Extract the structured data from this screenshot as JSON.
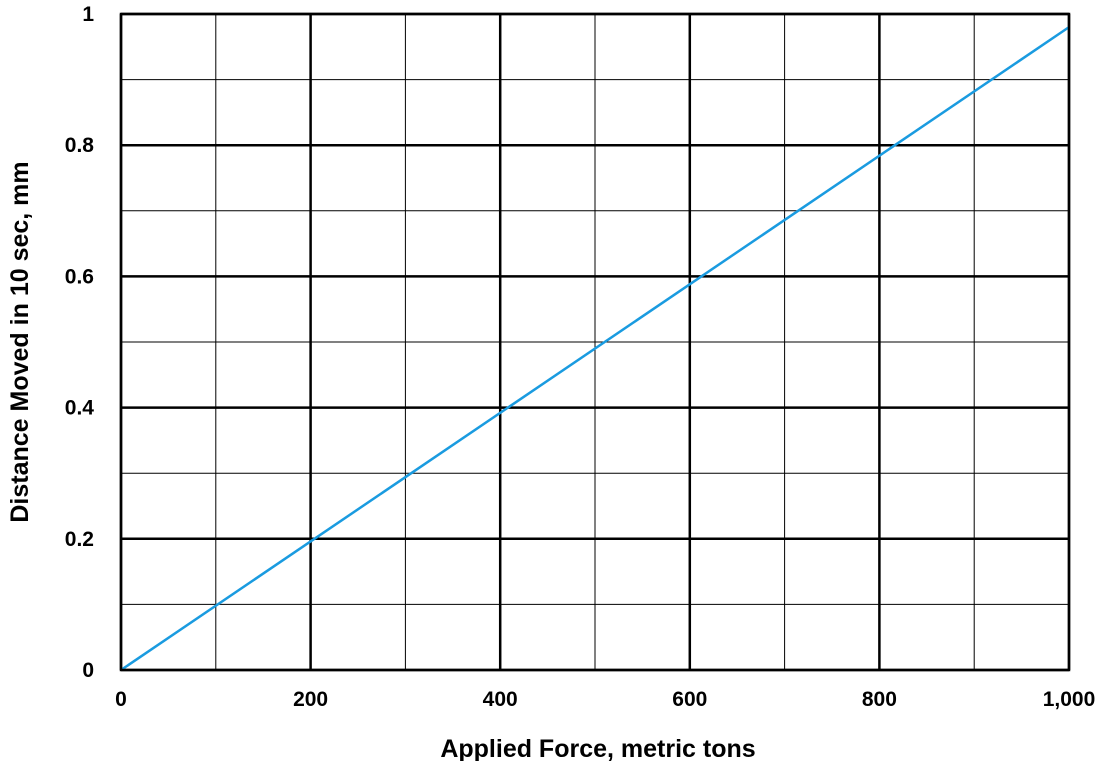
{
  "chart_data": {
    "type": "line",
    "title": "",
    "xlabel": "Applied Force, metric tons",
    "ylabel": "Distance Moved in 10 sec, mm",
    "xlim": [
      0,
      1000
    ],
    "ylim": [
      0,
      1
    ],
    "x_ticks": [
      0,
      200,
      400,
      600,
      800,
      1000
    ],
    "x_tick_labels": [
      "0",
      "200",
      "400",
      "600",
      "800",
      "1,000"
    ],
    "y_ticks": [
      0,
      0.2,
      0.4,
      0.6,
      0.8,
      1
    ],
    "y_tick_labels": [
      "0",
      "0.2",
      "0.4",
      "0.6",
      "0.8",
      "1"
    ],
    "x_minor_grid": [
      100,
      300,
      500,
      700,
      900
    ],
    "y_minor_grid": [
      0.1,
      0.3,
      0.5,
      0.7,
      0.9
    ],
    "grid": true,
    "legend": "none",
    "series": [
      {
        "x": [
          0,
          1000
        ],
        "y": [
          0,
          0.98
        ],
        "color": "#1a9be0"
      }
    ]
  }
}
